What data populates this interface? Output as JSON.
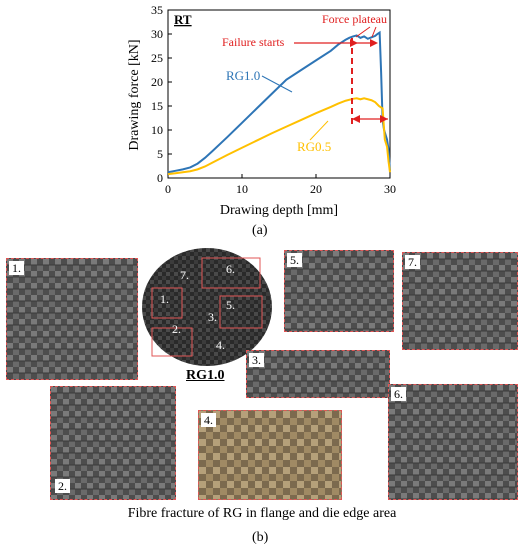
{
  "chart_data": {
    "type": "line",
    "title": "RT",
    "xlabel": "Drawing depth [mm]",
    "ylabel": "Drawing force [kN]",
    "xlim": [
      0,
      30
    ],
    "ylim": [
      0,
      35
    ],
    "xticks": [
      0,
      10,
      20,
      30
    ],
    "yticks": [
      0,
      5,
      10,
      15,
      20,
      25,
      30,
      35
    ],
    "series": [
      {
        "name": "RG1.0",
        "color": "#2e75b6",
        "x": [
          0,
          1,
          2,
          3,
          4,
          5,
          6,
          8,
          10,
          12,
          14,
          16,
          18,
          20,
          22,
          23,
          24,
          24.5,
          25,
          25.5,
          26,
          26.5,
          27,
          27.5,
          28,
          28.3,
          28.6,
          28.8,
          29,
          29.2,
          29.4,
          29.6,
          29.8,
          30
        ],
        "values": [
          1.2,
          1.5,
          1.8,
          2.2,
          3.0,
          4.2,
          5.6,
          8.5,
          11.5,
          14.5,
          17.5,
          20.5,
          22.5,
          24.5,
          26.5,
          27.8,
          28.8,
          29.2,
          29.5,
          29.7,
          29.2,
          29.5,
          29.0,
          29.3,
          29.6,
          30.0,
          30.3,
          22.0,
          12.0,
          10.0,
          9.0,
          8.0,
          6.0,
          1.5
        ]
      },
      {
        "name": "RG0.5",
        "color": "#ffc000",
        "x": [
          0,
          1,
          2,
          3,
          4,
          5,
          6,
          8,
          10,
          12,
          14,
          16,
          18,
          20,
          22,
          23,
          24,
          25,
          25.5,
          26,
          26.5,
          27,
          27.5,
          28,
          28.5,
          29,
          29.3,
          29.6,
          29.8,
          30
        ],
        "values": [
          0.8,
          1.0,
          1.2,
          1.4,
          1.8,
          2.4,
          3.2,
          4.8,
          6.3,
          7.8,
          9.3,
          10.7,
          12.1,
          13.5,
          14.8,
          15.5,
          16.1,
          16.5,
          16.6,
          16.4,
          16.6,
          16.4,
          16.2,
          15.8,
          15.0,
          14.5,
          8.0,
          6.5,
          3.5,
          1.2
        ]
      }
    ],
    "annotations": {
      "force_plateau": "Force plateau",
      "failure_starts": "Failure starts",
      "color": "#e02020"
    }
  },
  "captions": {
    "a": "(a)",
    "b": "(b)",
    "figure_b_caption": "Fibre fracture of RG in flange and die edge area",
    "center_label": "RG1.0"
  },
  "panels": {
    "p1": "1.",
    "p2": "2.",
    "p3": "3.",
    "p4": "4.",
    "p5": "5.",
    "p6": "6.",
    "p7": "7."
  },
  "disc_labels": [
    "1.",
    "2.",
    "3.",
    "4.",
    "5.",
    "6.",
    "7."
  ]
}
